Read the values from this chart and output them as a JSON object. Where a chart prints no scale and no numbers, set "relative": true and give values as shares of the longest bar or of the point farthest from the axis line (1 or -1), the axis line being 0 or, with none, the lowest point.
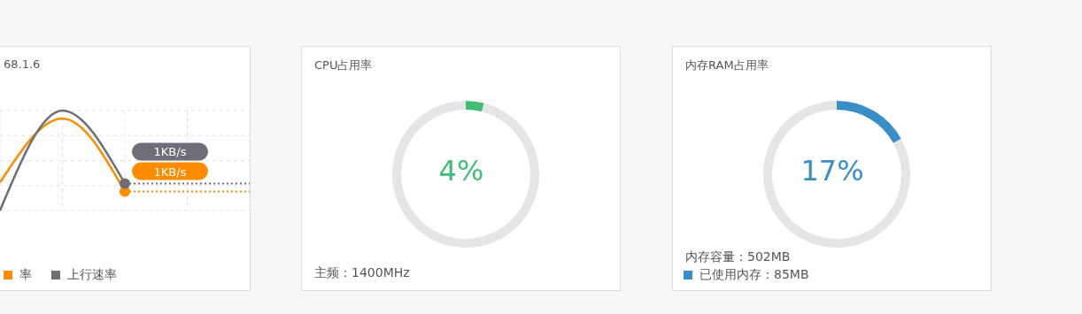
{
  "chart_data": [
    {
      "type": "line",
      "title": "68.1.6",
      "relative": true,
      "categories": [
        null,
        null,
        null,
        null,
        null
      ],
      "grid": true,
      "legend": "bottom left",
      "annotations": [
        "1KB/s",
        "1KB/s"
      ],
      "series": [
        {
          "name": "率",
          "color": "#ff8c00",
          "values": [
            0.28,
            0.92,
            0.19,
            null,
            null
          ]
        },
        {
          "name": "上行速率",
          "color": "#6e6e78",
          "values": [
            0,
            1,
            0.27,
            null,
            null
          ]
        },
        {
          "color": "#ff8c00",
          "line_style": "dotted",
          "values": [
            null,
            null,
            0.19,
            0.19,
            0.19
          ]
        },
        {
          "color": "#6e6e78",
          "line_style": "dotted",
          "values": [
            null,
            null,
            0.27,
            0.27,
            0.27
          ]
        }
      ]
    },
    {
      "type": "donut",
      "title": "CPU占用率",
      "categories": [
        null,
        null
      ],
      "values": [
        4,
        96
      ],
      "colors": [
        "#44bb77",
        "#e5e5e5"
      ],
      "annotations": [
        "4%",
        "主频：1400MHz"
      ]
    },
    {
      "type": "donut",
      "title": "内存RAM占用率",
      "categories": [
        "已使用内存：85MB",
        null
      ],
      "values": [
        17,
        83
      ],
      "colors": [
        "#3a8ec8",
        "#e5e5e5"
      ],
      "legend": "bottom left",
      "annotations": [
        "17%",
        "内存容量：502MB"
      ]
    }
  ]
}
